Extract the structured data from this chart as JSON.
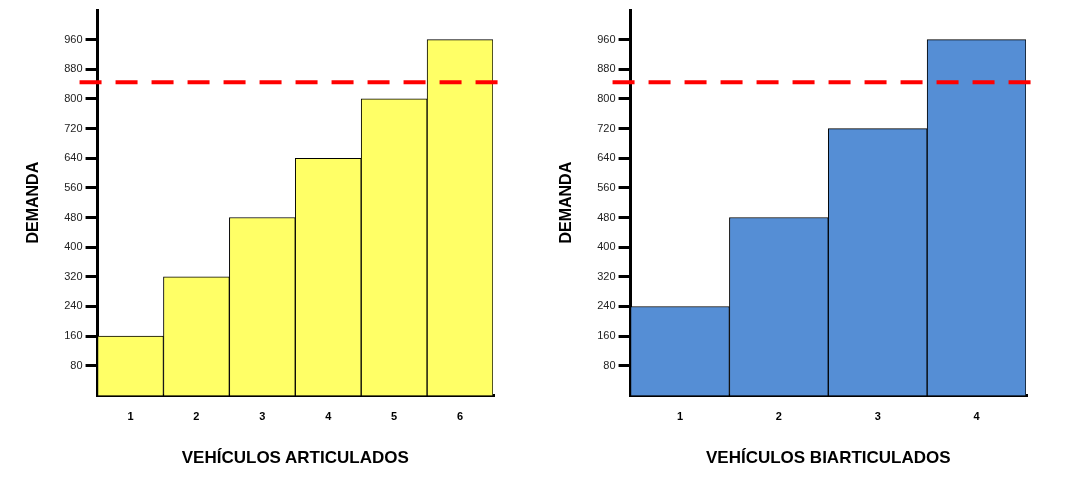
{
  "chart_data": [
    {
      "type": "bar",
      "categories": [
        "1",
        "2",
        "3",
        "4",
        "5",
        "6"
      ],
      "values": [
        160,
        320,
        480,
        640,
        800,
        960
      ],
      "color": "#ffff66",
      "ylim": [
        0,
        1040
      ],
      "yticks": [
        80,
        160,
        240,
        320,
        400,
        480,
        560,
        640,
        720,
        800,
        880,
        960
      ],
      "xlabel": "VEHÍCULOS ARTICULADOS",
      "ylabel": "DEMANDA",
      "grid": false,
      "ref_lines": [
        {
          "axis": "y",
          "value": 845,
          "color": "#ff0000",
          "line_style": "dashed"
        }
      ]
    },
    {
      "type": "bar",
      "categories": [
        "1",
        "2",
        "3",
        "4"
      ],
      "values": [
        240,
        480,
        720,
        960
      ],
      "color": "#558ed5",
      "ylim": [
        0,
        1040
      ],
      "yticks": [
        80,
        160,
        240,
        320,
        400,
        480,
        560,
        640,
        720,
        800,
        880,
        960
      ],
      "xlabel": "VEHÍCULOS BIARTICULADOS",
      "ylabel": "DEMANDA",
      "grid": false,
      "ref_lines": [
        {
          "axis": "y",
          "value": 845,
          "color": "#ff0000",
          "line_style": "dashed"
        }
      ]
    }
  ]
}
